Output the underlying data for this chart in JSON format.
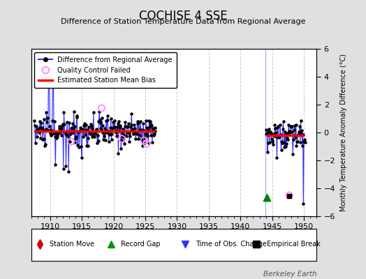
{
  "title": "COCHISE 4 SSE",
  "subtitle": "Difference of Station Temperature Data from Regional Average",
  "ylabel": "Monthly Temperature Anomaly Difference (°C)",
  "ylim": [
    -6,
    6
  ],
  "xlim": [
    1907,
    1952
  ],
  "background_color": "#e0e0e0",
  "plot_bg_color": "#ffffff",
  "grid_color": "#c8c8c8",
  "line_color": "#3333ff",
  "dot_color": "#000000",
  "bias_color": "#ff0000",
  "qc_color": "#ff88ff",
  "segment1_bias": 0.12,
  "segment2_bias": -0.22,
  "watermark": "Berkeley Earth",
  "xticks": [
    1910,
    1915,
    1920,
    1925,
    1930,
    1935,
    1940,
    1945,
    1950
  ],
  "yticks": [
    -6,
    -4,
    -2,
    0,
    2,
    4,
    6
  ]
}
